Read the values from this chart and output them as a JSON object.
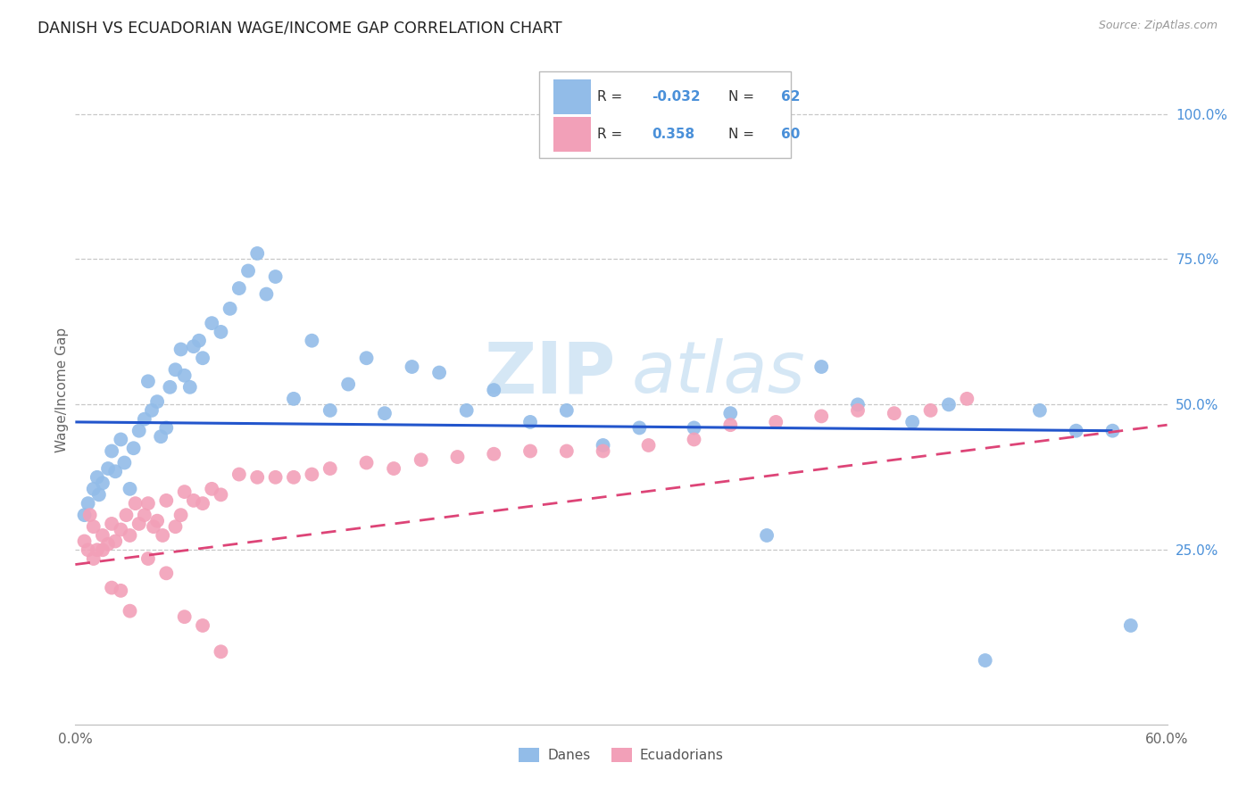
{
  "title": "DANISH VS ECUADORIAN WAGE/INCOME GAP CORRELATION CHART",
  "source": "Source: ZipAtlas.com",
  "ylabel": "Wage/Income Gap",
  "xlim": [
    0.0,
    0.6
  ],
  "ylim": [
    -0.05,
    1.1
  ],
  "xtick_positions": [
    0.0,
    0.1,
    0.2,
    0.3,
    0.4,
    0.5,
    0.6
  ],
  "xticklabels": [
    "0.0%",
    "",
    "",
    "",
    "",
    "",
    "60.0%"
  ],
  "yticks_right": [
    0.25,
    0.5,
    0.75,
    1.0
  ],
  "ytick_right_labels": [
    "25.0%",
    "50.0%",
    "75.0%",
    "100.0%"
  ],
  "R_blue": -0.032,
  "N_blue": 62,
  "R_pink": 0.358,
  "N_pink": 60,
  "blue_color": "#92bce8",
  "pink_color": "#f2a0b8",
  "blue_line_color": "#2255cc",
  "pink_line_color": "#dd4477",
  "blue_line_start_y": 0.47,
  "blue_line_end_y": 0.455,
  "blue_line_x_end": 0.57,
  "pink_line_start_y": 0.225,
  "pink_line_end_y": 0.465,
  "pink_line_x_end": 0.6,
  "danes_x": [
    0.005,
    0.007,
    0.01,
    0.012,
    0.013,
    0.015,
    0.018,
    0.02,
    0.022,
    0.025,
    0.027,
    0.03,
    0.032,
    0.035,
    0.038,
    0.04,
    0.042,
    0.045,
    0.047,
    0.05,
    0.052,
    0.055,
    0.058,
    0.06,
    0.063,
    0.065,
    0.068,
    0.07,
    0.075,
    0.08,
    0.085,
    0.09,
    0.095,
    0.1,
    0.105,
    0.11,
    0.12,
    0.13,
    0.14,
    0.15,
    0.16,
    0.17,
    0.185,
    0.2,
    0.215,
    0.23,
    0.25,
    0.27,
    0.29,
    0.31,
    0.34,
    0.36,
    0.38,
    0.41,
    0.43,
    0.46,
    0.48,
    0.5,
    0.53,
    0.55,
    0.57,
    0.58
  ],
  "danes_y": [
    0.31,
    0.33,
    0.355,
    0.375,
    0.345,
    0.365,
    0.39,
    0.42,
    0.385,
    0.44,
    0.4,
    0.355,
    0.425,
    0.455,
    0.475,
    0.54,
    0.49,
    0.505,
    0.445,
    0.46,
    0.53,
    0.56,
    0.595,
    0.55,
    0.53,
    0.6,
    0.61,
    0.58,
    0.64,
    0.625,
    0.665,
    0.7,
    0.73,
    0.76,
    0.69,
    0.72,
    0.51,
    0.61,
    0.49,
    0.535,
    0.58,
    0.485,
    0.565,
    0.555,
    0.49,
    0.525,
    0.47,
    0.49,
    0.43,
    0.46,
    0.46,
    0.485,
    0.275,
    0.565,
    0.5,
    0.47,
    0.5,
    0.06,
    0.49,
    0.455,
    0.455,
    0.12
  ],
  "ecuadorians_x": [
    0.005,
    0.007,
    0.008,
    0.01,
    0.012,
    0.015,
    0.018,
    0.02,
    0.022,
    0.025,
    0.028,
    0.03,
    0.033,
    0.035,
    0.038,
    0.04,
    0.043,
    0.045,
    0.048,
    0.05,
    0.055,
    0.058,
    0.06,
    0.065,
    0.07,
    0.075,
    0.08,
    0.09,
    0.1,
    0.11,
    0.12,
    0.13,
    0.14,
    0.16,
    0.175,
    0.19,
    0.21,
    0.23,
    0.25,
    0.27,
    0.29,
    0.315,
    0.34,
    0.36,
    0.385,
    0.41,
    0.43,
    0.45,
    0.47,
    0.49,
    0.01,
    0.015,
    0.02,
    0.025,
    0.03,
    0.04,
    0.05,
    0.06,
    0.07,
    0.08
  ],
  "ecuadorians_y": [
    0.265,
    0.25,
    0.31,
    0.29,
    0.25,
    0.275,
    0.26,
    0.295,
    0.265,
    0.285,
    0.31,
    0.275,
    0.33,
    0.295,
    0.31,
    0.33,
    0.29,
    0.3,
    0.275,
    0.335,
    0.29,
    0.31,
    0.35,
    0.335,
    0.33,
    0.355,
    0.345,
    0.38,
    0.375,
    0.375,
    0.375,
    0.38,
    0.39,
    0.4,
    0.39,
    0.405,
    0.41,
    0.415,
    0.42,
    0.42,
    0.42,
    0.43,
    0.44,
    0.465,
    0.47,
    0.48,
    0.49,
    0.485,
    0.49,
    0.51,
    0.235,
    0.25,
    0.185,
    0.18,
    0.145,
    0.235,
    0.21,
    0.135,
    0.12,
    0.075
  ]
}
